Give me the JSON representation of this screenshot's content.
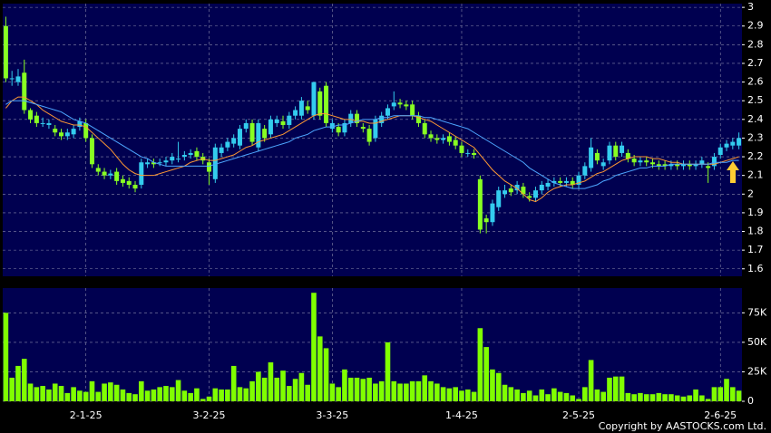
{
  "chart_data": [
    {
      "type": "candlestick",
      "open": [
        2.9,
        2.62,
        2.6,
        2.65,
        2.45,
        2.42,
        2.38,
        2.37,
        2.35,
        2.33,
        2.31,
        2.32,
        2.36,
        2.38,
        2.3,
        2.14,
        2.12,
        2.1,
        2.12,
        2.08,
        2.07,
        2.05,
        2.05,
        2.16,
        2.17,
        2.17,
        2.17,
        2.18,
        2.19,
        2.2,
        2.21,
        2.23,
        2.2,
        2.17,
        2.08,
        2.22,
        2.25,
        2.27,
        2.26,
        2.35,
        2.38,
        2.25,
        2.35,
        2.32,
        2.38,
        2.39,
        2.37,
        2.42,
        2.42,
        2.47,
        2.42,
        2.55,
        2.58,
        2.35,
        2.36,
        2.33,
        2.38,
        2.43,
        2.36,
        2.35,
        2.3,
        2.38,
        2.42,
        2.47,
        2.49,
        2.48,
        2.48,
        2.42,
        2.38,
        2.32,
        2.3,
        2.29,
        2.31,
        2.29,
        2.26,
        2.22,
        2.22,
        2.08,
        1.87,
        1.85,
        1.93,
        2,
        2.03,
        2.02,
        2.04,
        1.99,
        1.98,
        2.02,
        2.04,
        2.06,
        2.07,
        2.06,
        2.07,
        2.05,
        2.1,
        2.14,
        2.22,
        2.15,
        2.18,
        2.26,
        2.22,
        2.22,
        2.19,
        2.17,
        2.18,
        2.17,
        2.16,
        2.16,
        2.15,
        2.16,
        2.15,
        2.16,
        2.15,
        2.16,
        2.15,
        2.15,
        2.21,
        2.25,
        2.26,
        2.26
      ],
      "high": [
        2.95,
        2.66,
        2.67,
        2.72,
        2.46,
        2.44,
        2.41,
        2.4,
        2.37,
        2.35,
        2.35,
        2.37,
        2.41,
        2.4,
        2.32,
        2.16,
        2.14,
        2.13,
        2.14,
        2.1,
        2.09,
        2.07,
        2.19,
        2.19,
        2.19,
        2.19,
        2.2,
        2.22,
        2.28,
        2.23,
        2.24,
        2.25,
        2.22,
        2.19,
        2.27,
        2.27,
        2.3,
        2.32,
        2.37,
        2.4,
        2.4,
        2.4,
        2.37,
        2.42,
        2.42,
        2.42,
        2.44,
        2.47,
        2.52,
        2.5,
        2.6,
        2.57,
        2.6,
        2.4,
        2.38,
        2.4,
        2.45,
        2.45,
        2.38,
        2.37,
        2.42,
        2.44,
        2.48,
        2.55,
        2.51,
        2.5,
        2.5,
        2.44,
        2.4,
        2.34,
        2.32,
        2.32,
        2.33,
        2.31,
        2.28,
        2.24,
        2.24,
        2.1,
        1.89,
        1.97,
        2.04,
        2.05,
        2.05,
        2.07,
        2.06,
        2.01,
        2.04,
        2.07,
        2.08,
        2.09,
        2.09,
        2.09,
        2.09,
        2.12,
        2.17,
        2.3,
        2.24,
        2.19,
        2.28,
        2.28,
        2.28,
        2.24,
        2.21,
        2.2,
        2.2,
        2.19,
        2.18,
        2.18,
        2.18,
        2.18,
        2.18,
        2.18,
        2.18,
        2.2,
        2.17,
        2.22,
        2.27,
        2.29,
        2.3,
        2.33
      ],
      "low": [
        2.6,
        2.58,
        2.58,
        2.43,
        2.38,
        2.36,
        2.36,
        2.35,
        2.31,
        2.29,
        2.29,
        2.3,
        2.34,
        2.28,
        2.14,
        2.1,
        2.08,
        2.08,
        2.05,
        2.04,
        2.03,
        2.01,
        2.03,
        2.14,
        2.14,
        2.15,
        2.15,
        2.16,
        2.17,
        2.18,
        2.19,
        2.18,
        2.16,
        2.05,
        2.06,
        2.2,
        2.23,
        2.25,
        2.24,
        2.33,
        2.26,
        2.23,
        2.28,
        2.3,
        2.36,
        2.35,
        2.35,
        2.4,
        2.4,
        2.43,
        2.4,
        2.4,
        2.36,
        2.33,
        2.31,
        2.31,
        2.36,
        2.36,
        2.33,
        2.26,
        2.28,
        2.36,
        2.4,
        2.45,
        2.46,
        2.45,
        2.4,
        2.36,
        2.3,
        2.28,
        2.27,
        2.27,
        2.26,
        2.24,
        2.2,
        2.2,
        2.19,
        1.79,
        1.79,
        1.83,
        1.91,
        1.98,
        1.99,
        2,
        1.98,
        1.96,
        1.96,
        2,
        2.02,
        2.04,
        2.04,
        2.04,
        2.03,
        2.03,
        2.08,
        2.12,
        2.16,
        2.13,
        2.16,
        2.18,
        2.2,
        2.17,
        2.15,
        2.15,
        2.15,
        2.14,
        2.13,
        2.13,
        2.13,
        2.13,
        2.13,
        2.13,
        2.13,
        2.14,
        2.06,
        2.13,
        2.19,
        2.23,
        2.24,
        2.24
      ],
      "close": [
        2.62,
        2.62,
        2.63,
        2.45,
        2.4,
        2.38,
        2.38,
        2.38,
        2.33,
        2.31,
        2.33,
        2.35,
        2.39,
        2.3,
        2.16,
        2.12,
        2.1,
        2.11,
        2.07,
        2.06,
        2.05,
        2.03,
        2.17,
        2.17,
        2.16,
        2.17,
        2.18,
        2.2,
        2.19,
        2.21,
        2.22,
        2.2,
        2.18,
        2.12,
        2.25,
        2.25,
        2.28,
        2.3,
        2.35,
        2.38,
        2.28,
        2.38,
        2.3,
        2.4,
        2.4,
        2.37,
        2.42,
        2.45,
        2.5,
        2.45,
        2.6,
        2.42,
        2.38,
        2.38,
        2.33,
        2.38,
        2.43,
        2.38,
        2.35,
        2.28,
        2.4,
        2.42,
        2.46,
        2.49,
        2.48,
        2.47,
        2.42,
        2.38,
        2.32,
        2.3,
        2.29,
        2.3,
        2.28,
        2.26,
        2.22,
        2.22,
        2.21,
        1.81,
        1.85,
        1.95,
        2.02,
        2.02,
        2.01,
        2.05,
        2,
        1.98,
        2.02,
        2.05,
        2.06,
        2.07,
        2.06,
        2.07,
        2.05,
        2.1,
        2.15,
        2.25,
        2.18,
        2.17,
        2.26,
        2.2,
        2.26,
        2.19,
        2.17,
        2.18,
        2.17,
        2.16,
        2.15,
        2.15,
        2.16,
        2.15,
        2.16,
        2.15,
        2.16,
        2.18,
        2.14,
        2.2,
        2.25,
        2.27,
        2.28,
        2.3
      ],
      "series": [
        {
          "color": "#ff9933",
          "values": [
            2.46,
            2.5,
            2.52,
            2.52,
            2.5,
            2.48,
            2.45,
            2.43,
            2.41,
            2.39,
            2.38,
            2.37,
            2.37,
            2.36,
            2.33,
            2.3,
            2.27,
            2.24,
            2.2,
            2.16,
            2.13,
            2.11,
            2.1,
            2.1,
            2.1,
            2.11,
            2.12,
            2.13,
            2.14,
            2.15,
            2.17,
            2.18,
            2.19,
            2.18,
            2.18,
            2.19,
            2.2,
            2.21,
            2.23,
            2.25,
            2.26,
            2.28,
            2.29,
            2.3,
            2.31,
            2.32,
            2.34,
            2.36,
            2.38,
            2.4,
            2.42,
            2.43,
            2.43,
            2.42,
            2.41,
            2.4,
            2.4,
            2.39,
            2.39,
            2.38,
            2.38,
            2.39,
            2.4,
            2.41,
            2.42,
            2.42,
            2.42,
            2.41,
            2.4,
            2.39,
            2.37,
            2.35,
            2.33,
            2.31,
            2.29,
            2.27,
            2.25,
            2.21,
            2.17,
            2.13,
            2.1,
            2.07,
            2.05,
            2.03,
            2,
            1.97,
            1.96,
            1.98,
            2.01,
            2.03,
            2.04,
            2.05,
            2.05,
            2.06,
            2.07,
            2.09,
            2.11,
            2.12,
            2.14,
            2.16,
            2.18,
            2.19,
            2.2,
            2.2,
            2.2,
            2.19,
            2.19,
            2.18,
            2.17,
            2.17,
            2.16,
            2.16,
            2.16,
            2.16,
            2.16,
            2.16,
            2.17,
            2.18,
            2.19,
            2.2
          ]
        },
        {
          "color": "#4da6ff",
          "values": [
            2.48,
            2.5,
            2.5,
            2.5,
            2.49,
            2.48,
            2.47,
            2.46,
            2.45,
            2.44,
            2.42,
            2.4,
            2.39,
            2.38,
            2.36,
            2.34,
            2.32,
            2.3,
            2.28,
            2.26,
            2.24,
            2.22,
            2.2,
            2.19,
            2.17,
            2.16,
            2.15,
            2.15,
            2.15,
            2.15,
            2.15,
            2.15,
            2.15,
            2.15,
            2.16,
            2.17,
            2.18,
            2.19,
            2.2,
            2.21,
            2.22,
            2.23,
            2.24,
            2.25,
            2.26,
            2.27,
            2.28,
            2.3,
            2.31,
            2.32,
            2.34,
            2.35,
            2.36,
            2.36,
            2.37,
            2.37,
            2.38,
            2.39,
            2.4,
            2.4,
            2.4,
            2.41,
            2.41,
            2.42,
            2.42,
            2.42,
            2.42,
            2.42,
            2.41,
            2.41,
            2.4,
            2.39,
            2.38,
            2.37,
            2.36,
            2.35,
            2.33,
            2.31,
            2.29,
            2.27,
            2.25,
            2.23,
            2.21,
            2.19,
            2.17,
            2.14,
            2.12,
            2.1,
            2.08,
            2.06,
            2.05,
            2.04,
            2.03,
            2.03,
            2.03,
            2.04,
            2.05,
            2.07,
            2.08,
            2.1,
            2.11,
            2.12,
            2.13,
            2.14,
            2.14,
            2.15,
            2.15,
            2.15,
            2.16,
            2.16,
            2.16,
            2.16,
            2.16,
            2.16,
            2.16,
            2.17,
            2.17,
            2.17,
            2.18,
            2.18
          ]
        }
      ],
      "up_color": "#33ccee",
      "down_color": "#88ff22",
      "ylim": [
        1.56,
        3.02
      ],
      "yticks": [
        1.6,
        1.7,
        1.8,
        1.9,
        2,
        2.1,
        2.2,
        2.3,
        2.4,
        2.5,
        2.6,
        2.7,
        2.8,
        2.9,
        3
      ],
      "grid": true
    },
    {
      "type": "bar",
      "categories": [
        null,
        null,
        null,
        null,
        null,
        null,
        null,
        null,
        null,
        null,
        null,
        null,
        null,
        "2-1-25",
        null,
        null,
        null,
        null,
        null,
        null,
        null,
        null,
        null,
        null,
        null,
        null,
        null,
        null,
        null,
        null,
        null,
        null,
        null,
        "3-2-25",
        null,
        null,
        null,
        null,
        null,
        null,
        null,
        null,
        null,
        null,
        null,
        null,
        null,
        null,
        null,
        null,
        null,
        null,
        null,
        "3-3-25",
        null,
        null,
        null,
        null,
        null,
        null,
        null,
        null,
        null,
        null,
        null,
        null,
        null,
        null,
        null,
        null,
        null,
        null,
        null,
        null,
        "1-4-25",
        null,
        null,
        null,
        null,
        null,
        null,
        null,
        null,
        null,
        null,
        null,
        null,
        null,
        null,
        null,
        null,
        null,
        null,
        "2-5-25",
        null,
        null,
        null,
        null,
        null,
        null,
        null,
        null,
        null,
        null,
        null,
        null,
        null,
        null,
        null,
        null,
        null,
        null,
        null,
        null,
        null,
        null,
        "2-6-25",
        null,
        null,
        null
      ],
      "values": [
        75000,
        20000,
        30000,
        36000,
        15000,
        12000,
        13000,
        10000,
        15000,
        13000,
        7000,
        12000,
        9000,
        8000,
        17000,
        8000,
        15000,
        16000,
        14000,
        10000,
        7000,
        6000,
        17000,
        9000,
        10000,
        12000,
        13000,
        12000,
        18000,
        9000,
        7000,
        11000,
        2000,
        4000,
        11000,
        10000,
        10000,
        30000,
        12000,
        11000,
        17000,
        25000,
        20000,
        33000,
        20000,
        26000,
        13000,
        19000,
        24000,
        14000,
        92000,
        55000,
        45000,
        15000,
        12000,
        27000,
        20000,
        20000,
        19000,
        20000,
        15000,
        17000,
        50000,
        17000,
        15000,
        15000,
        17000,
        17000,
        22000,
        17000,
        15000,
        12000,
        11000,
        12000,
        9000,
        10000,
        8000,
        62000,
        46000,
        27000,
        24000,
        14000,
        12000,
        10000,
        7000,
        9000,
        5000,
        10000,
        6000,
        11000,
        8000,
        7000,
        5000,
        2000,
        12000,
        35000,
        10000,
        8000,
        20000,
        21000,
        21000,
        7000,
        6000,
        7000,
        6000,
        6000,
        7000,
        6000,
        6000,
        5000,
        4000,
        5000,
        10000,
        5000,
        2000,
        12000,
        12000,
        19000,
        12000,
        9000
      ],
      "color": "#80ff00",
      "ylim": [
        0,
        96000
      ],
      "yticks": [
        0,
        {
          "value": 25000,
          "label": "25K"
        },
        {
          "value": 50000,
          "label": "50K"
        },
        {
          "value": 75000,
          "label": "75K"
        }
      ],
      "grid": true
    }
  ],
  "copyright": "Copyright by AASTOCKS.com Ltd."
}
